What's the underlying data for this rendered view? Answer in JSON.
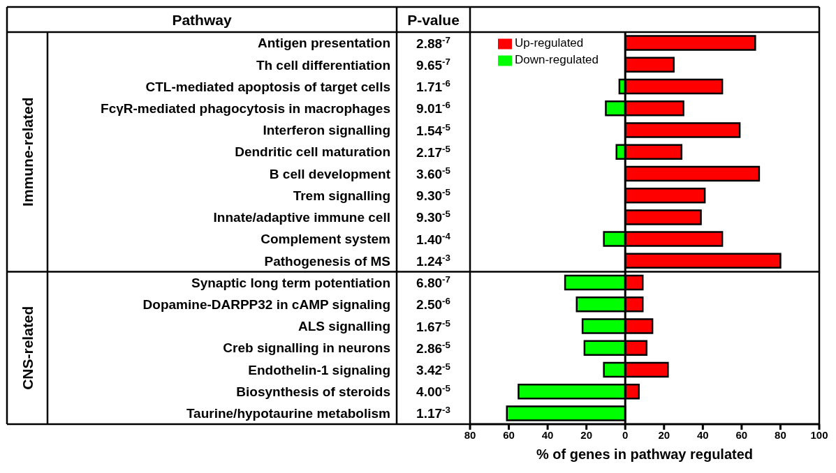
{
  "chart_data": {
    "type": "bar",
    "orientation": "horizontal",
    "stacked": true,
    "xlabel": "% of genes in pathway regulated",
    "categories": [
      "Antigen presentation",
      "Th cell differentiation",
      "CTL-mediated apoptosis of target cells",
      "FcγR-mediated phagocytosis in macrophages",
      "Interferon signalling",
      "Dendritic cell maturation",
      "B cell development",
      "Trem signalling",
      "Innate/adaptive immune cell",
      "Complement system",
      "Pathogenesis of MS",
      "Synaptic long term potentiation",
      "Dopamine-DARPP32 in cAMP signaling",
      "ALS signalling",
      "Creb signalling in neurons",
      "Endothelin-1 signaling",
      "Biosynthesis of steroids",
      "Taurine/hypotaurine metabolism"
    ],
    "series": [
      {
        "name": "Up-regulated",
        "color": "#ff0000",
        "values": [
          67,
          25,
          50,
          30,
          59,
          29,
          69,
          41,
          39,
          50,
          80,
          9,
          9,
          14,
          11,
          22,
          7,
          null
        ]
      },
      {
        "name": "Down-regulated",
        "color": "#00ff00",
        "values": [
          null,
          null,
          -3,
          -10,
          null,
          -4.5,
          null,
          null,
          null,
          -11,
          null,
          -31,
          -25,
          -22,
          -21,
          -11,
          -55,
          -61
        ]
      }
    ],
    "xlim": [
      -80,
      100
    ],
    "xticks": [
      {
        "value": -80,
        "label": "80"
      },
      {
        "value": -60,
        "label": "60"
      },
      {
        "value": -40,
        "label": "40"
      },
      {
        "value": -20,
        "label": "20"
      },
      0,
      20,
      40,
      60,
      80,
      100
    ],
    "grid": false,
    "legend": "top left",
    "ref_lines": [
      {
        "axis": "x",
        "value": 0,
        "color": "#000000"
      },
      {
        "axis": "y",
        "value": "Synaptic long term potentiation",
        "color": "#000000"
      }
    ],
    "annotations": [
      "Pathway",
      "P-value",
      "Immune-related",
      "CNS-related",
      "2.88$^{-7}$",
      "9.65$^{-7}$",
      "1.71$^{-6}$",
      "9.01$^{-6}$",
      "1.54$^{-5}$",
      "2.17$^{-5}$",
      "3.60$^{-5}$",
      "9.30$^{-5}$",
      "9.30$^{-5}$",
      "1.40$^{-4}$",
      "1.24$^{-3}$",
      "6.80$^{-7}$",
      "2.50$^{-6}$",
      "1.67$^{-5}$",
      "2.86$^{-5}$",
      "3.42$^{-5}$",
      "4.00$^{-5}$",
      "1.17$^{-3}$"
    ]
  }
}
